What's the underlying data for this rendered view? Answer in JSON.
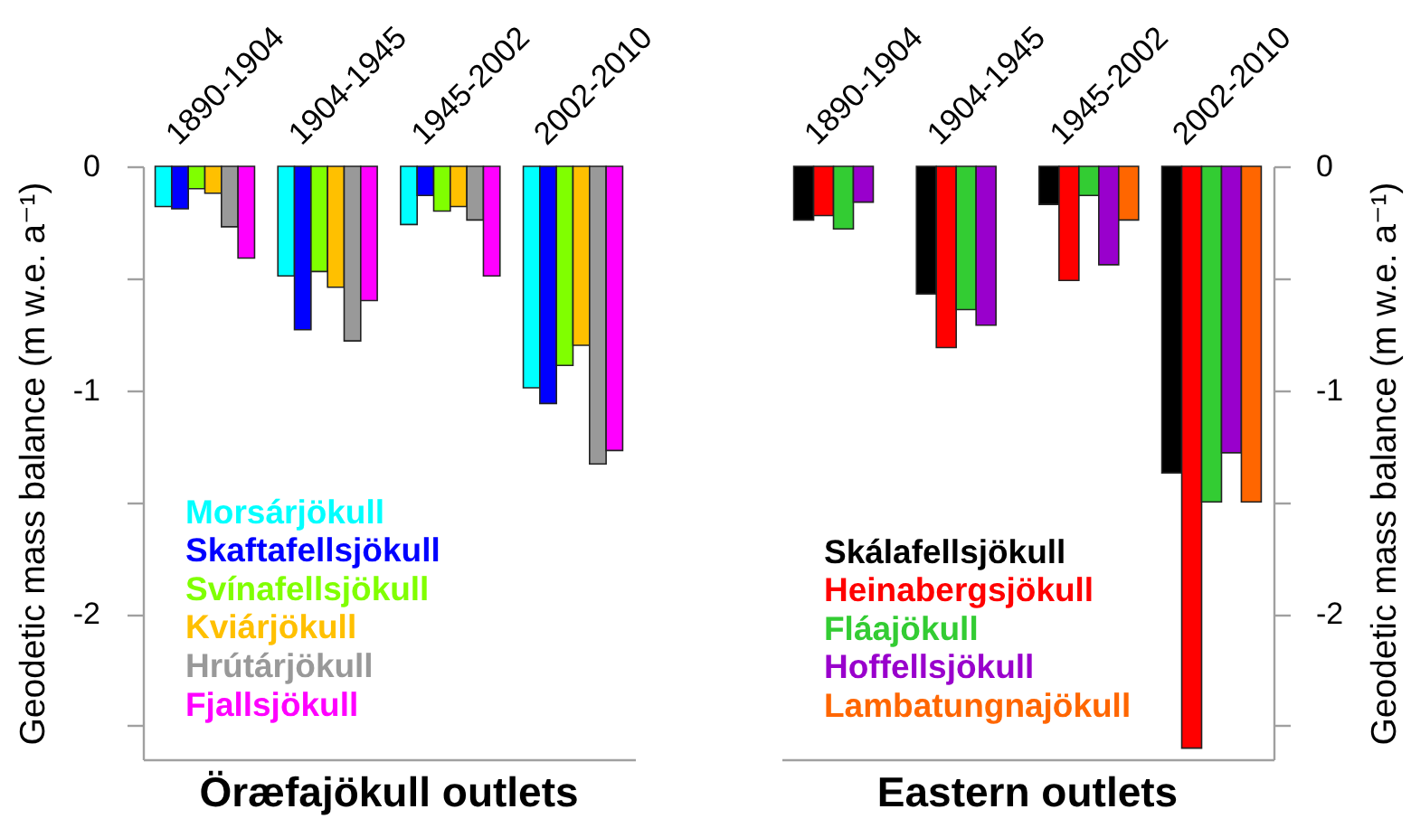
{
  "chart_data": [
    {
      "type": "bar",
      "title": "Öræfajökull outlets",
      "categories": [
        "1890-1904",
        "1904-1945",
        "1945-2002",
        "2002-2010"
      ],
      "ylabel": "Geodetic mass balance (m w.e. a⁻¹)",
      "ylim": [
        -2.65,
        0
      ],
      "yticks": [
        0,
        {
          "value": -0.5,
          "label": null
        },
        -1,
        {
          "value": -1.5,
          "label": null
        },
        -2,
        {
          "value": -2.5,
          "label": null
        }
      ],
      "legend": "bottom left",
      "series": [
        {
          "name": "Morsárjökull",
          "color": "#00ffff",
          "values": [
            -0.18,
            -0.49,
            -0.26,
            -0.99
          ]
        },
        {
          "name": "Skaftafellsjökull",
          "color": "#0000ff",
          "values": [
            -0.19,
            -0.73,
            -0.13,
            -1.06
          ]
        },
        {
          "name": "Svínafellsjökull",
          "color": "#80ff00",
          "values": [
            -0.1,
            -0.47,
            -0.2,
            -0.89
          ]
        },
        {
          "name": "Kviárjökull",
          "color": "#ffc000",
          "values": [
            -0.12,
            -0.54,
            -0.18,
            -0.8
          ]
        },
        {
          "name": "Hrútárjökull",
          "color": "#999999",
          "values": [
            -0.27,
            -0.78,
            -0.24,
            -1.33
          ]
        },
        {
          "name": "Fjallsjökull",
          "color": "#ff00ff",
          "values": [
            -0.41,
            -0.6,
            -0.49,
            -1.27
          ]
        }
      ]
    },
    {
      "type": "bar",
      "title": "Eastern outlets",
      "categories": [
        "1890-1904",
        "1904-1945",
        "1945-2002",
        "2002-2010"
      ],
      "y2label": "Geodetic mass balance (m w.e. a⁻¹)",
      "y2lim": [
        -2.65,
        0
      ],
      "y2ticks": [
        0,
        {
          "value": -0.5,
          "label": null
        },
        -1,
        {
          "value": -1.5,
          "label": null
        },
        -2,
        {
          "value": -2.5,
          "label": null
        }
      ],
      "legend": "bottom left",
      "series": [
        {
          "name": "Skálafellsjökull",
          "color": "#000000",
          "axis": "y2",
          "values": [
            -0.24,
            -0.57,
            -0.17,
            -1.37
          ]
        },
        {
          "name": "Heinabergsjökull",
          "color": "#ff0000",
          "axis": "y2",
          "values": [
            -0.22,
            -0.81,
            -0.51,
            -2.6
          ]
        },
        {
          "name": "Fláajökull",
          "color": "#33cc33",
          "axis": "y2",
          "values": [
            -0.28,
            -0.64,
            -0.13,
            -1.5
          ]
        },
        {
          "name": "Hoffellsjökull",
          "color": "#9900cc",
          "axis": "y2",
          "values": [
            -0.16,
            -0.71,
            -0.44,
            -1.28
          ]
        },
        {
          "name": "Lambatungnajökull",
          "color": "#ff6600",
          "axis": "y2",
          "values": [
            null,
            null,
            -0.24,
            -1.5
          ]
        }
      ]
    }
  ]
}
